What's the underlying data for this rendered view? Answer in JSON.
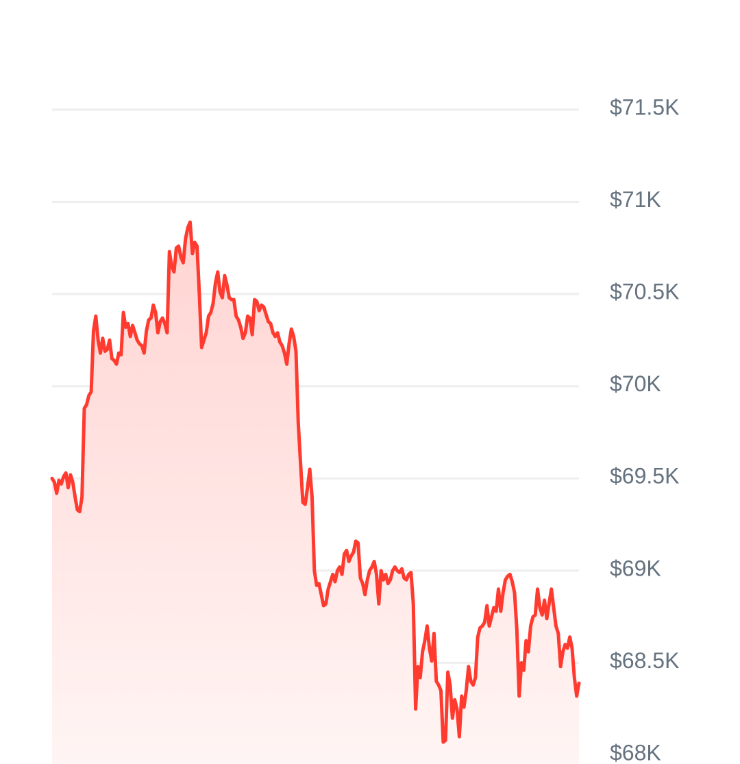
{
  "chart_data": {
    "type": "area",
    "xlabel": "",
    "ylabel": "",
    "ylim": [
      68000,
      71500
    ],
    "yticks": [
      68000,
      68500,
      69000,
      69500,
      70000,
      70500,
      71000,
      71500
    ],
    "ytick_labels": [
      "$68K",
      "$68.5K",
      "$69K",
      "$69.5K",
      "$70K",
      "$70.5K",
      "$71K",
      "$71.5K"
    ],
    "grid": true,
    "legend": "none",
    "colors": {
      "line": "#ff3b30",
      "fill_top": "#ffd4d2",
      "fill_bottom": "#fff5f4",
      "grid": "#eeeeee",
      "tick_text": "#65727f"
    },
    "series": [
      {
        "values": [
          69500,
          69480,
          69420,
          69490,
          69470,
          69510,
          69530,
          69450,
          69520,
          69480,
          69400,
          69330,
          69320,
          69400,
          69880,
          69900,
          69950,
          69970,
          70300,
          70380,
          70250,
          70180,
          70260,
          70190,
          70200,
          70250,
          70150,
          70140,
          70120,
          70180,
          70170,
          70400,
          70320,
          70340,
          70270,
          70330,
          70290,
          70250,
          70230,
          70220,
          70180,
          70300,
          70360,
          70370,
          70440,
          70400,
          70290,
          70350,
          70370,
          70340,
          70290,
          70730,
          70650,
          70620,
          70750,
          70760,
          70700,
          70670,
          70800,
          70860,
          70890,
          70720,
          70780,
          70760,
          70500,
          70210,
          70250,
          70290,
          70380,
          70400,
          70450,
          70560,
          70620,
          70510,
          70480,
          70600,
          70550,
          70480,
          70470,
          70470,
          70380,
          70360,
          70320,
          70260,
          70290,
          70380,
          70370,
          70280,
          70470,
          70460,
          70410,
          70440,
          70430,
          70390,
          70350,
          70340,
          70290,
          70270,
          70290,
          70240,
          70220,
          70180,
          70120,
          70230,
          70310,
          70270,
          70190,
          69800,
          69580,
          69370,
          69360,
          69450,
          69550,
          69400,
          69000,
          68920,
          68930,
          68870,
          68810,
          68820,
          68900,
          68940,
          68980,
          68940,
          69000,
          69020,
          68980,
          69090,
          69110,
          69050,
          69080,
          69100,
          69160,
          69150,
          68960,
          68930,
          68870,
          68950,
          69000,
          69020,
          69050,
          68980,
          68820,
          69000,
          68950,
          68980,
          68930,
          68950,
          69000,
          69020,
          69000,
          68990,
          69010,
          68960,
          68950,
          68980,
          68990,
          68820,
          68250,
          68480,
          68420,
          68560,
          68620,
          68700,
          68580,
          68510,
          68660,
          68400,
          68380,
          68350,
          68070,
          68080,
          68450,
          68380,
          68200,
          68300,
          68250,
          68100,
          68320,
          68260,
          68350,
          68480,
          68400,
          68380,
          68420,
          68640,
          68690,
          68700,
          68720,
          68810,
          68700,
          68750,
          68800,
          68780,
          68900,
          68780,
          68880,
          68950,
          68970,
          68980,
          68940,
          68880,
          68680,
          68320,
          68500,
          68460,
          68620,
          68560,
          68700,
          68750,
          68760,
          68900,
          68800,
          68760,
          68840,
          68740,
          68820,
          68900,
          68800,
          68700,
          68660,
          68480,
          68560,
          68600,
          68580,
          68640,
          68580,
          68420,
          68320,
          68390
        ]
      }
    ]
  }
}
